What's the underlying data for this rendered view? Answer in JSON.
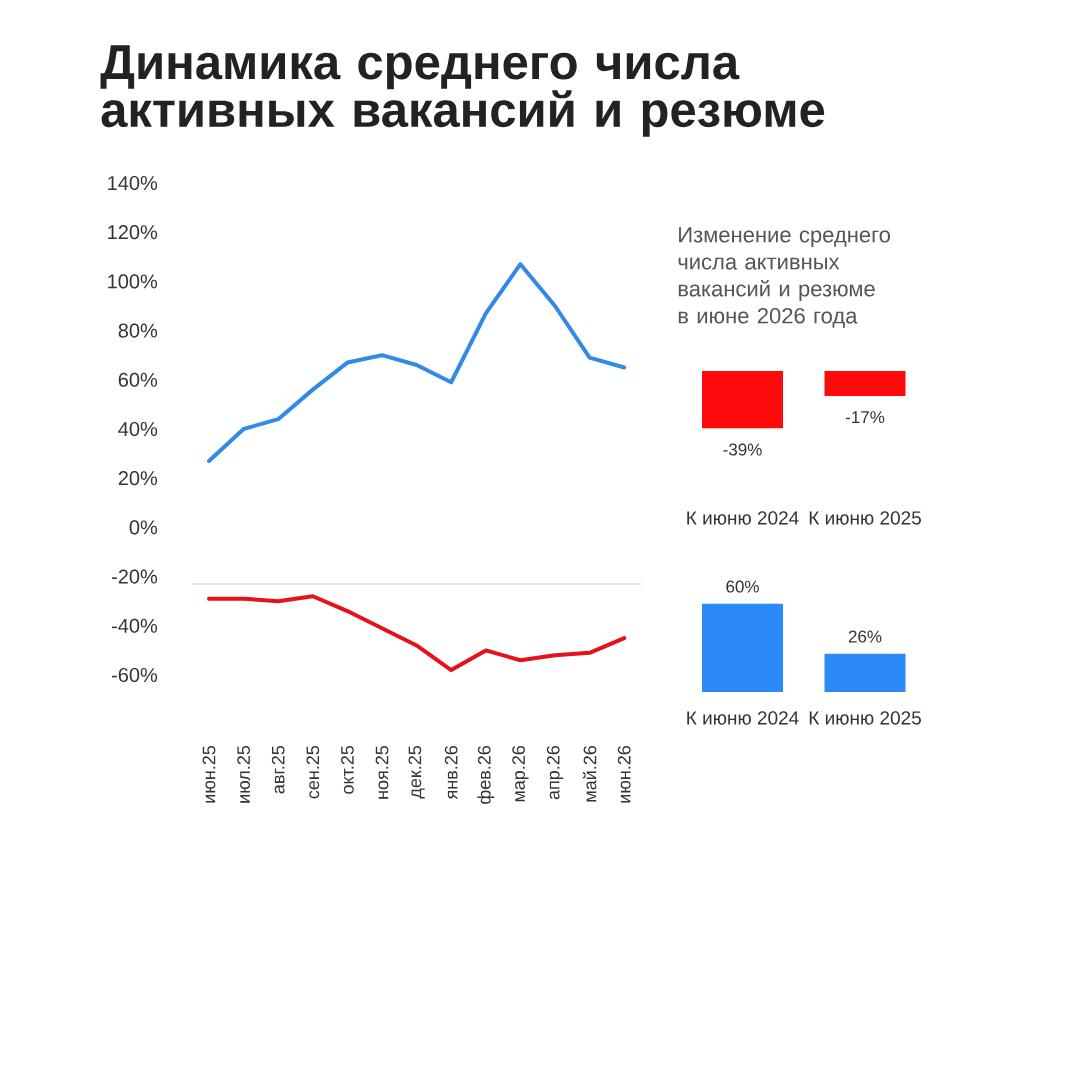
{
  "chart_data": [
    {
      "type": "line",
      "title": "Динамика среднего числа активных вакансий и резюме",
      "categories": [
        "июн.25",
        "июл.25",
        "авг.25",
        "сен.25",
        "окт.25",
        "ноя.25",
        "дек.25",
        "янв.26",
        "фев.26",
        "мар.26",
        "апр.26",
        "май.26",
        "июн.26"
      ],
      "series": [
        {
          "color": "#e5121b",
          "values": [
            -29,
            -29,
            -30,
            -28,
            -34,
            -41,
            -48,
            -58,
            -50,
            -54,
            -52,
            -51,
            -45
          ]
        },
        {
          "color": "#3388e8",
          "values": [
            27,
            40,
            44,
            56,
            67,
            70,
            66,
            59,
            87,
            107,
            90,
            69,
            65
          ]
        }
      ],
      "ylim": [
        -60,
        140
      ],
      "yticks": [
        {
          "value": -60,
          "label": "-60%"
        },
        {
          "value": -40,
          "label": "-40%"
        },
        {
          "value": -20,
          "label": "-20%"
        },
        {
          "value": 0,
          "label": "0%"
        },
        {
          "value": 20,
          "label": "20%"
        },
        {
          "value": 40,
          "label": "40%"
        },
        {
          "value": 60,
          "label": "60%"
        },
        {
          "value": 80,
          "label": "80%"
        },
        {
          "value": 100,
          "label": "100%"
        },
        {
          "value": 120,
          "label": "120%"
        },
        {
          "value": 140,
          "label": "140%"
        }
      ],
      "ref_lines": [
        {
          "axis": "y",
          "value": -23,
          "color": "#dddddd"
        }
      ],
      "line_style": "solid"
    },
    {
      "type": "bar",
      "title": "Изменение среднего числа активных вакансий и резюме в июне 2026 года",
      "categories": [
        "К июню 2024",
        "К июню 2025"
      ],
      "values": [
        -39,
        -17
      ],
      "color": "#ff0a0a",
      "value_labels": [
        "-39%",
        "-17%"
      ]
    },
    {
      "type": "bar",
      "categories": [
        "К июню 2024",
        "К июню 2025"
      ],
      "values": [
        60,
        26
      ],
      "color": "#2b8af7",
      "value_labels": [
        "60%",
        "26%"
      ]
    }
  ]
}
